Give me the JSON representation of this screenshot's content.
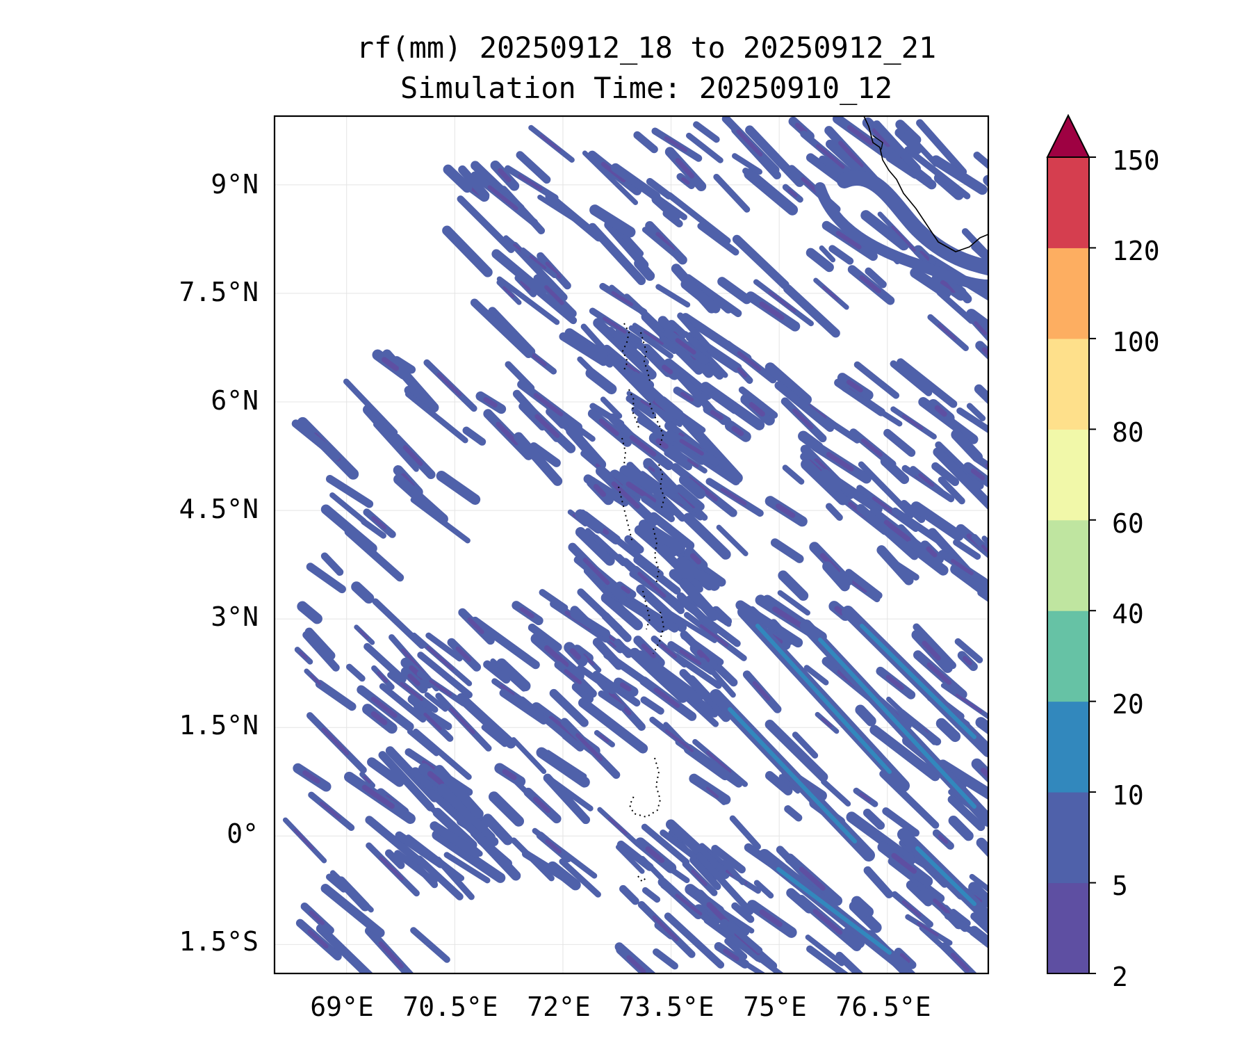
{
  "title": {
    "line1": "rf(mm) 20250912_18 to 20250912_21",
    "line2": "Simulation Time: 20250910_12"
  },
  "map": {
    "lon_range": [
      68.0,
      77.9
    ],
    "lat_range": [
      -1.9,
      9.95
    ],
    "lat_ticks": [
      "9°N",
      "7.5°N",
      "6°N",
      "4.5°N",
      "3°N",
      "1.5°N",
      "0°",
      "1.5°S"
    ],
    "lon_ticks": [
      "69°E",
      "70.5°E",
      "72°E",
      "73.5°E",
      "75°E",
      "76.5°E"
    ],
    "gridlines": true,
    "coastline": "southern India tip (top-right) and Maldives atolls (dotted, centre)"
  },
  "colorbar": {
    "levels": [
      "2",
      "5",
      "10",
      "20",
      "40",
      "60",
      "80",
      "100",
      "120",
      "150"
    ],
    "colors": [
      "#5e4fa2",
      "#4f61aa",
      "#3288bd",
      "#66c2a5",
      "#bfe5a0",
      "#f1f8a9",
      "#fee08b",
      "#fdae61",
      "#d53e4f",
      "#9e0142"
    ],
    "extend": "max"
  },
  "chart_data": {
    "type": "heatmap",
    "variable": "rf(mm)",
    "period": "20250912_18 to 20250912_21",
    "simulation_time": "20250910_12",
    "xlim": [
      68.0,
      77.9
    ],
    "ylim": [
      -1.9,
      9.95
    ],
    "dominant_range_mm": [
      2,
      10
    ],
    "max_observed_range_mm": [
      10,
      20
    ],
    "pattern": "NW-SE oriented rain streaks, densest east of 72°E and near the Maldives"
  }
}
